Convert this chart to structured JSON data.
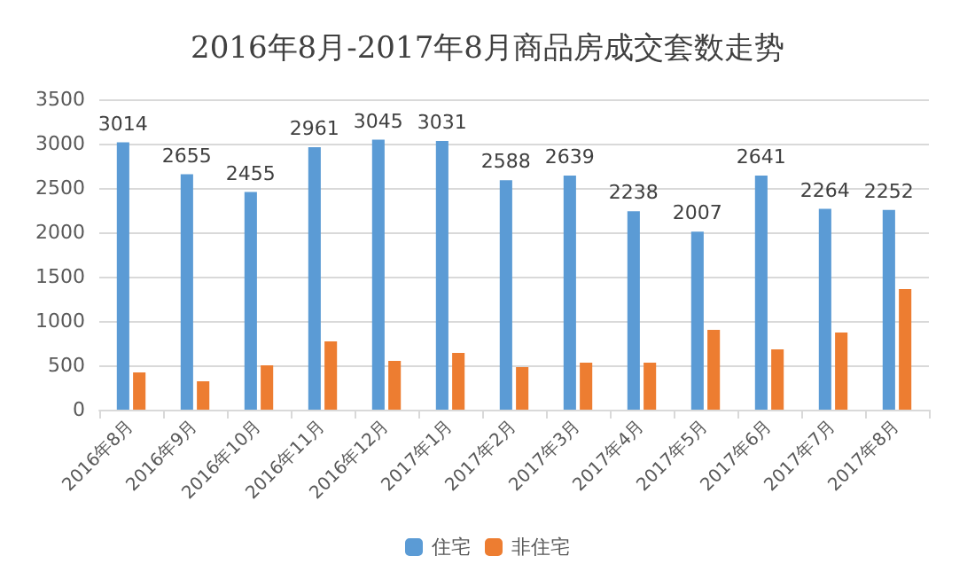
{
  "chart_data": {
    "type": "bar",
    "title": "2016年8月-2017年8月商品房成交套数走势",
    "categories": [
      "2016年8月",
      "2016年9月",
      "2016年10月",
      "2016年11月",
      "2016年12月",
      "2017年1月",
      "2017年2月",
      "2017年3月",
      "2017年4月",
      "2017年5月",
      "2017年6月",
      "2017年7月",
      "2017年8月"
    ],
    "series": [
      {
        "name": "住宅",
        "color": "#5b9bd5",
        "values": [
          3014,
          2655,
          2455,
          2961,
          3045,
          3031,
          2588,
          2639,
          2238,
          2007,
          2641,
          2264,
          2252
        ],
        "value_labels": [
          "3014",
          "2655",
          "2455",
          "2961",
          "3045",
          "3031",
          "2588",
          "2639",
          "2238",
          "2007",
          "2641",
          "2264",
          "2252"
        ]
      },
      {
        "name": "非住宅",
        "color": "#ed7d31",
        "values": [
          420,
          320,
          500,
          770,
          550,
          640,
          480,
          530,
          530,
          900,
          680,
          870,
          1360
        ]
      }
    ],
    "ylim": [
      0,
      3500
    ],
    "yticks": [
      0,
      500,
      1000,
      1500,
      2000,
      2500,
      3000,
      3500
    ],
    "grid": "y",
    "legend": "bottom"
  }
}
